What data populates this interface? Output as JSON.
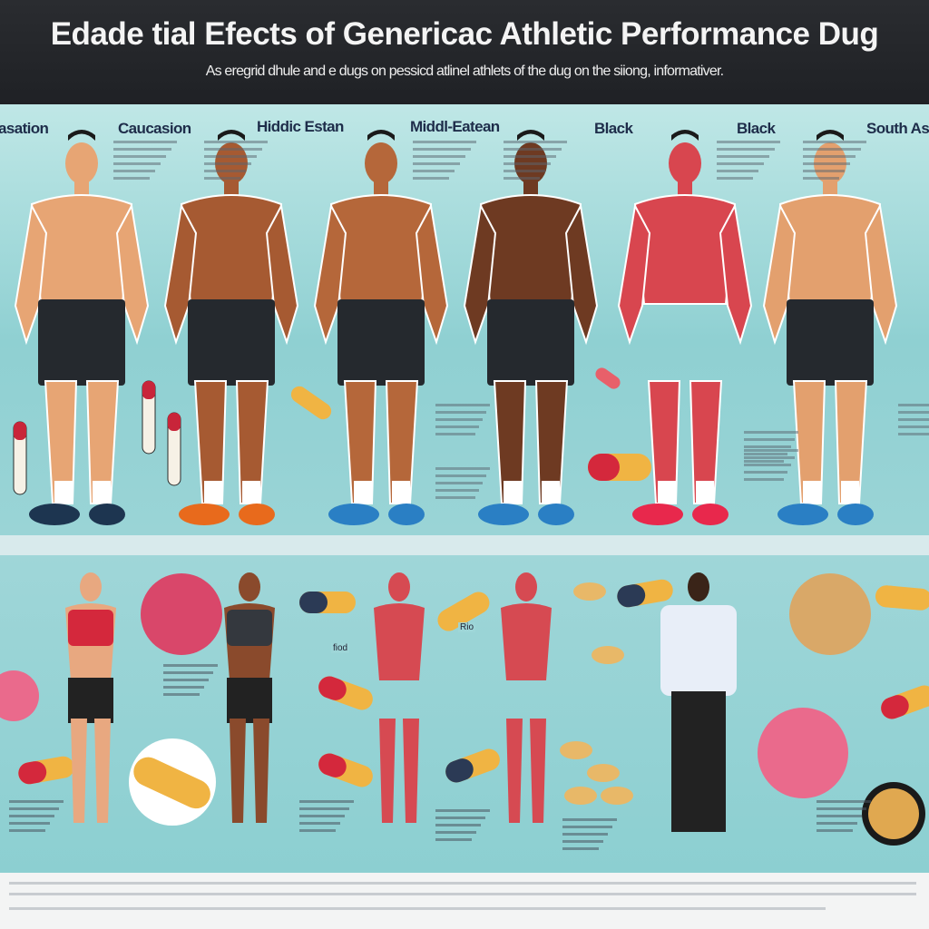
{
  "header": {
    "title": "Edade tial Efects of Genericac Athletic Performance Dug",
    "subtitle": "As eregrid dhule and e dugs on pessicd atlinel athlets of the dug on the siiong, informativer."
  },
  "top_row": {
    "labels": [
      "asation",
      "Caucasion",
      "Hiddic Estan",
      "Middl-Eatean",
      "Black",
      "Black",
      "South As"
    ],
    "figures": [
      {
        "skin": "#e7a574",
        "shoe": "#1d3550"
      },
      {
        "skin": "#a65a32",
        "shoe": "#e86a1c"
      },
      {
        "skin": "#b5673a",
        "shoe": "#2a7fc4"
      },
      {
        "skin": "#6e3a22",
        "shoe": "#2a7fc4"
      },
      {
        "skin": "#d8464f",
        "shoe": "#e8284c"
      },
      {
        "skin": "#e3a06e",
        "shoe": "#2a7fc4"
      }
    ]
  },
  "bottom_row": {
    "labels": [
      "Rio",
      "fiod"
    ]
  },
  "colors": {
    "header": "#24262a",
    "panel": "#92d1d3",
    "pill_red": "#d4283c",
    "pill_yellow": "#f0b443",
    "tablet_pink": "#e86a86"
  }
}
